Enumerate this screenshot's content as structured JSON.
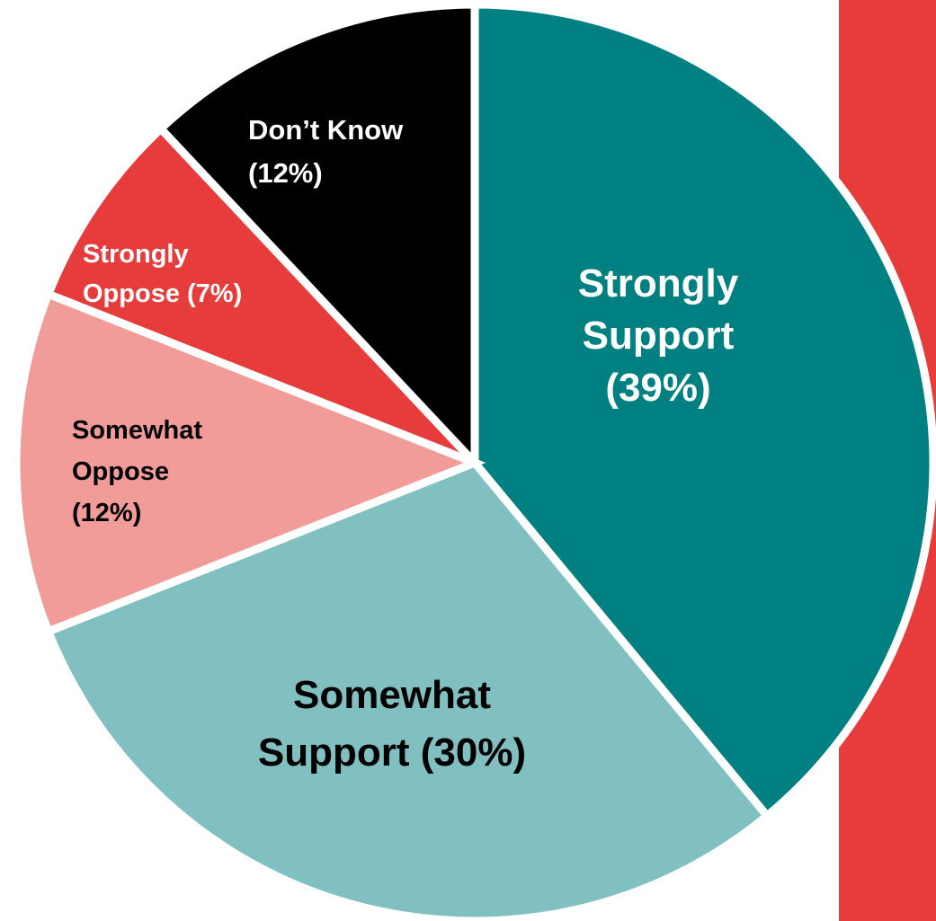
{
  "chart_data": {
    "type": "pie",
    "slices": [
      {
        "name": "Strongly Support",
        "value": 39,
        "color": "#008080",
        "label_lines": [
          "Strongly",
          "Support",
          "(39%)"
        ],
        "label_color": "#ffffff"
      },
      {
        "name": "Somewhat Support",
        "value": 30,
        "color": "#80c0c0",
        "label_lines": [
          "Somewhat",
          "Support (30%)"
        ],
        "label_color": "#000000"
      },
      {
        "name": "Somewhat Oppose",
        "value": 12,
        "color": "#f19c99",
        "label_lines": [
          "Somewhat",
          "Oppose",
          "(12%)"
        ],
        "label_color": "#000000"
      },
      {
        "name": "Strongly Oppose",
        "value": 7,
        "color": "#e63c3c",
        "label_lines": [
          "Strongly",
          "Oppose (7%)"
        ],
        "label_color": "#ffffff"
      },
      {
        "name": "Don’t Know",
        "value": 12,
        "color": "#000000",
        "label_lines": [
          "Don’t Know",
          "(12%)"
        ],
        "label_color": "#ffffff"
      }
    ],
    "start_angle_deg": 0,
    "direction": "clockwise",
    "legend": "none",
    "title": ""
  },
  "decor": {
    "accent_bar_color": "#e63c3c"
  }
}
